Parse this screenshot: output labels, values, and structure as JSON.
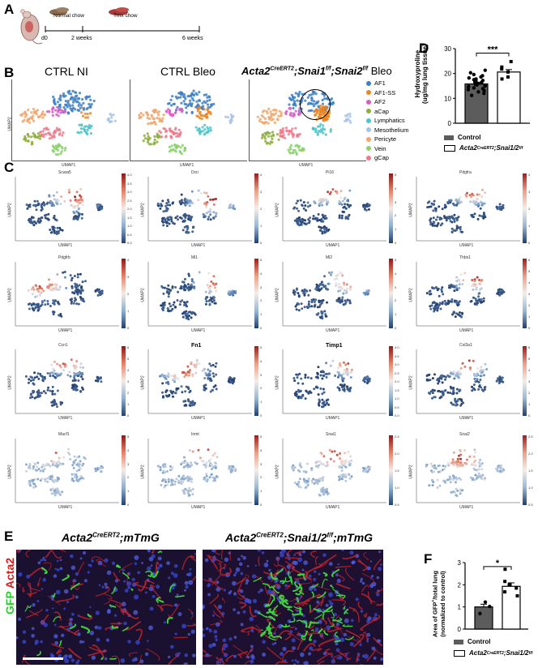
{
  "panel_a": {
    "label": "A",
    "chows": [
      "Normal chow",
      "Tmx chow"
    ],
    "timepoints": [
      "d0",
      "2 weeks",
      "6 weeks"
    ]
  },
  "panel_b": {
    "label": "B",
    "titles": [
      "CTRL NI",
      "CTRL Bleo",
      "Acta2",
      "CreERT2",
      ";Snai1",
      "f/f",
      ";Snai2",
      "f/f",
      " Bleo"
    ],
    "xlabel": "UMAP1",
    "ylabel": "UMAP2",
    "legend": [
      {
        "name": "AF1",
        "color": "#3d7fc4"
      },
      {
        "name": "AF1-SS",
        "color": "#f0851f"
      },
      {
        "name": "AF2",
        "color": "#d95cc6"
      },
      {
        "name": "aCap",
        "color": "#8dae3a"
      },
      {
        "name": "Lymphatics",
        "color": "#49c4c9"
      },
      {
        "name": "Mesothelium",
        "color": "#a9c3e6"
      },
      {
        "name": "Pericyte",
        "color": "#f2a56b"
      },
      {
        "name": "Vein",
        "color": "#8bd16c"
      },
      {
        "name": "gCap",
        "color": "#f07a8c"
      }
    ]
  },
  "panel_c": {
    "label": "C",
    "genes": [
      "Scara5",
      "Dcn",
      "Pi16",
      "Pdgfra",
      "Pdgfrb",
      "Ml1",
      "Ml2",
      "Thbs1",
      "Ccn1",
      "Fn1",
      "Timp1",
      "Col3a1",
      "Macf1",
      "Inmt",
      "Snai1",
      "Snai2"
    ],
    "xlabel": "UMAP1",
    "ylabel": "UMAP2",
    "colorbar_ticks": [
      [
        "4.0",
        "3.5",
        "3.0",
        "2.5",
        "2.0",
        "1.5",
        "1.0",
        "0.5",
        "0.0"
      ],
      [
        "4",
        "3",
        "2",
        "1",
        "0"
      ],
      [
        "5",
        "4",
        "3",
        "2",
        "1",
        "0"
      ],
      [
        "4",
        "3",
        "2",
        "1",
        "0"
      ],
      [
        "4",
        "3",
        "2",
        "1",
        "0"
      ],
      [
        "5",
        "4",
        "3",
        "2",
        "1",
        "0"
      ],
      [
        "5",
        "4",
        "3",
        "2",
        "1",
        "0"
      ],
      [
        "6",
        "5",
        "4",
        "3",
        "2",
        "1",
        "0"
      ],
      [
        "6",
        "5",
        "4",
        "3",
        "2",
        "1",
        "0"
      ],
      [
        "5",
        "4",
        "3",
        "2",
        "1",
        "0"
      ],
      [
        "4.0",
        "3.5",
        "3.0",
        "2.5",
        "2.0",
        "1.5",
        "1.0",
        "0.5",
        "0.0"
      ],
      [
        "6",
        "5",
        "4",
        "3",
        "2",
        "1",
        "0"
      ],
      [
        "5",
        "4",
        "3",
        "2",
        "1",
        "0"
      ],
      [
        "5",
        "4",
        "3",
        "2",
        "1",
        "0"
      ],
      [
        "2.5",
        "2.0",
        "1.5",
        "1.0",
        "0.5"
      ],
      [
        "2.5",
        "2.0",
        "1.5",
        "1.0",
        "0.5"
      ]
    ]
  },
  "panel_d": {
    "label": "D",
    "ylabel_line1": "Hydroxyproline",
    "ylabel_line2": "(ug/mg lung tissue)",
    "yticks": [
      "30",
      "20",
      "10",
      "0"
    ],
    "significance": "***",
    "legend": [
      "Control",
      "Acta2",
      "CreERT2",
      ";Snai1/2",
      "f/f"
    ],
    "chart_data": {
      "type": "bar",
      "categories": [
        "Control",
        "Acta2CreERT2;Snai1/2f/f"
      ],
      "values": [
        15.8,
        20.6
      ],
      "ylim": [
        0,
        30
      ],
      "points": [
        [
          11.2,
          12.0,
          12.6,
          13.1,
          13.5,
          13.9,
          14.2,
          14.5,
          14.8,
          15.0,
          15.2,
          15.4,
          15.6,
          15.8,
          16.0,
          16.2,
          16.4,
          16.6,
          16.9,
          17.2,
          17.5,
          17.8,
          18.2,
          18.6,
          19.1,
          19.6,
          20.3,
          21.3
        ],
        [
          17.8,
          18.6,
          20.6,
          21.8,
          22.6,
          24.8
        ]
      ]
    }
  },
  "panel_e": {
    "label": "E",
    "side_label_1": "GFP",
    "side_label_2": "Acta2",
    "titles": [
      "Acta2",
      "CreERT2",
      ";mTmG",
      "Acta2",
      "CreERT2",
      ";Snai1/2",
      "f/f",
      ";mTmG"
    ]
  },
  "panel_f": {
    "label": "F",
    "ylabel_line1": "Area of GFP",
    "ylabel_sup": "+",
    "ylabel_line1b": "/total lung",
    "ylabel_line2": "(normalized to control)",
    "yticks": [
      "3",
      "2",
      "1",
      "0"
    ],
    "significance": "*",
    "legend": [
      "Control",
      "Acta2",
      "CreERT2",
      ";Snai1/2",
      "f/f"
    ],
    "chart_data": {
      "type": "bar",
      "categories": [
        "Control",
        "Acta2CreERT2;Snai1/2f/f"
      ],
      "values": [
        1.0,
        1.93
      ],
      "ylim": [
        0,
        3
      ],
      "points": [
        [
          0.7,
          1.02,
          1.22
        ],
        [
          1.5,
          1.68,
          1.85,
          2.0,
          2.15,
          2.7
        ]
      ]
    }
  }
}
